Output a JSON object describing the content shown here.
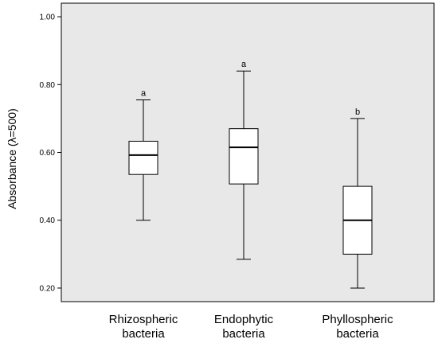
{
  "chart_data": {
    "type": "boxplot",
    "ylabel": "Absorbance (λ=500)",
    "xlabel": "",
    "ylim": [
      0.16,
      1.04
    ],
    "yticks": [
      0.2,
      0.4,
      0.6,
      0.8,
      1.0
    ],
    "ytick_labels": [
      "0.20",
      "0.40",
      "0.60",
      "0.80",
      "1.00"
    ],
    "grid": false,
    "plot_background": "#e8e8e8",
    "box_fill": "#ffffff",
    "line_color": "#000000",
    "categories": [
      {
        "label_lines": [
          "Rhizospheric",
          "bacteria"
        ],
        "min": 0.4,
        "q1": 0.535,
        "median": 0.592,
        "q3": 0.633,
        "max": 0.755,
        "letter": "a"
      },
      {
        "label_lines": [
          "Endophytic",
          "bacteria"
        ],
        "min": 0.285,
        "q1": 0.507,
        "median": 0.615,
        "q3": 0.67,
        "max": 0.84,
        "letter": "a"
      },
      {
        "label_lines": [
          "Phyllospheric",
          "bacteria"
        ],
        "min": 0.2,
        "q1": 0.3,
        "median": 0.4,
        "q3": 0.5,
        "max": 0.7,
        "letter": "b"
      }
    ]
  }
}
